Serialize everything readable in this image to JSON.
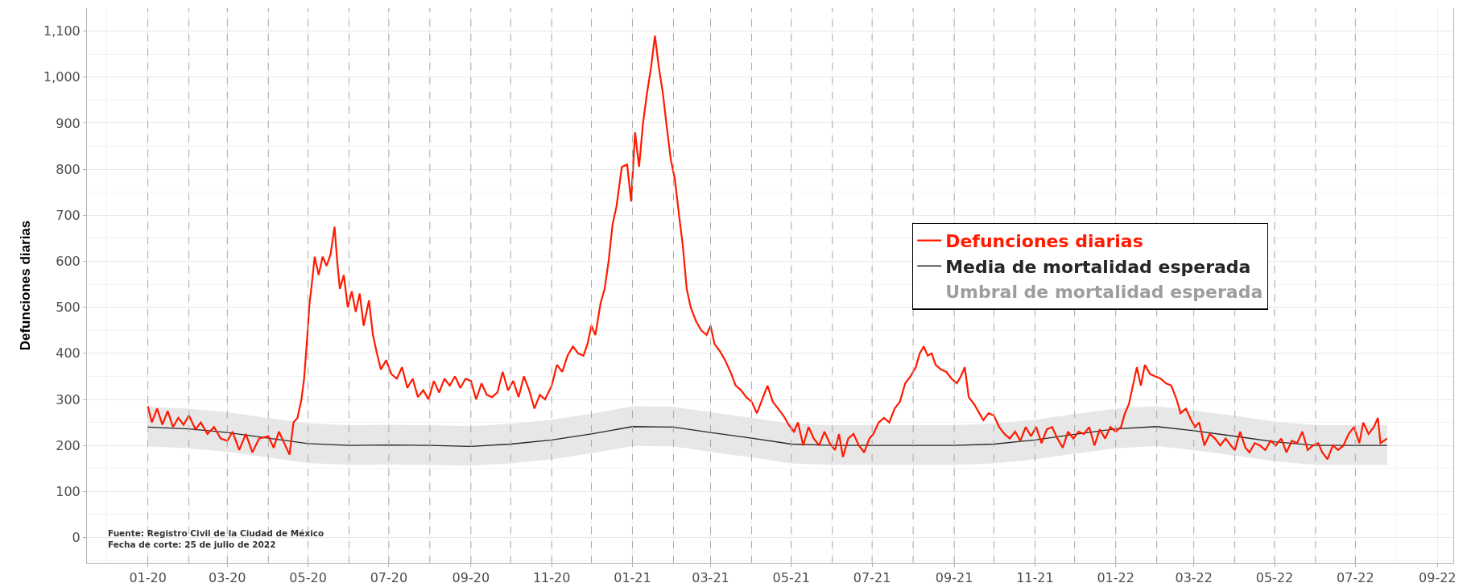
{
  "chart_data": {
    "type": "line",
    "ylabel": "Defunciones diarias",
    "annotations": [
      "Umbral de mortalidad esperada",
      "Fuente: Registro Civil de la Ciudad de México",
      "Fecha de corte: 25 de julio de 2022"
    ],
    "xlim": [
      "2019-11-16",
      "2022-09-13"
    ],
    "ylim": [
      -55,
      1150
    ],
    "xticks": [
      {
        "value": "2020-01-01",
        "label": "01-20"
      },
      {
        "value": "2020-03-01",
        "label": "03-20"
      },
      {
        "value": "2020-05-01",
        "label": "05-20"
      },
      {
        "value": "2020-07-01",
        "label": "07-20"
      },
      {
        "value": "2020-09-01",
        "label": "09-20"
      },
      {
        "value": "2020-11-01",
        "label": "11-20"
      },
      {
        "value": "2021-01-01",
        "label": "01-21"
      },
      {
        "value": "2021-03-01",
        "label": "03-21"
      },
      {
        "value": "2021-05-01",
        "label": "05-21"
      },
      {
        "value": "2021-07-01",
        "label": "07-21"
      },
      {
        "value": "2021-09-01",
        "label": "09-21"
      },
      {
        "value": "2021-11-01",
        "label": "11-21"
      },
      {
        "value": "2022-01-01",
        "label": "01-22"
      },
      {
        "value": "2022-03-01",
        "label": "03-22"
      },
      {
        "value": "2022-05-01",
        "label": "05-22"
      },
      {
        "value": "2022-07-01",
        "label": "07-22"
      },
      {
        "value": "2022-09-01",
        "label": "09-22"
      }
    ],
    "yticks": [
      0,
      100,
      200,
      300,
      400,
      500,
      600,
      700,
      800,
      900,
      {
        "value": 1000,
        "label": "1,000"
      },
      {
        "value": 1100,
        "label": "1,100"
      }
    ],
    "grid": true,
    "legend": "right",
    "series": [
      {
        "name": "Defunciones diarias",
        "type": "line",
        "color": "#ff1a00",
        "x": [
          "2020-01-01",
          "2020-01-04",
          "2020-01-08",
          "2020-01-12",
          "2020-01-16",
          "2020-01-20",
          "2020-01-24",
          "2020-01-28",
          "2020-02-01",
          "2020-02-06",
          "2020-02-10",
          "2020-02-15",
          "2020-02-20",
          "2020-02-25",
          "2020-03-01",
          "2020-03-05",
          "2020-03-10",
          "2020-03-15",
          "2020-03-20",
          "2020-03-25",
          "2020-04-01",
          "2020-04-05",
          "2020-04-09",
          "2020-04-13",
          "2020-04-17",
          "2020-04-20",
          "2020-04-23",
          "2020-04-26",
          "2020-04-28",
          "2020-04-30",
          "2020-05-02",
          "2020-05-04",
          "2020-05-06",
          "2020-05-09",
          "2020-05-12",
          "2020-05-15",
          "2020-05-18",
          "2020-05-21",
          "2020-05-23",
          "2020-05-25",
          "2020-05-28",
          "2020-05-31",
          "2020-06-03",
          "2020-06-06",
          "2020-06-09",
          "2020-06-12",
          "2020-06-16",
          "2020-06-19",
          "2020-06-22",
          "2020-06-25",
          "2020-06-29",
          "2020-07-03",
          "2020-07-07",
          "2020-07-11",
          "2020-07-15",
          "2020-07-19",
          "2020-07-23",
          "2020-07-27",
          "2020-07-31",
          "2020-08-04",
          "2020-08-08",
          "2020-08-12",
          "2020-08-16",
          "2020-08-20",
          "2020-08-24",
          "2020-08-28",
          "2020-09-01",
          "2020-09-05",
          "2020-09-09",
          "2020-09-13",
          "2020-09-17",
          "2020-09-21",
          "2020-09-25",
          "2020-09-29",
          "2020-10-03",
          "2020-10-07",
          "2020-10-11",
          "2020-10-15",
          "2020-10-19",
          "2020-10-23",
          "2020-10-27",
          "2020-11-01",
          "2020-11-05",
          "2020-11-09",
          "2020-11-13",
          "2020-11-17",
          "2020-11-21",
          "2020-11-25",
          "2020-11-28",
          "2020-12-01",
          "2020-12-04",
          "2020-12-08",
          "2020-12-11",
          "2020-12-14",
          "2020-12-17",
          "2020-12-20",
          "2020-12-24",
          "2020-12-28",
          "2020-12-31",
          "2021-01-03",
          "2021-01-06",
          "2021-01-09",
          "2021-01-12",
          "2021-01-15",
          "2021-01-18",
          "2021-01-21",
          "2021-01-24",
          "2021-01-27",
          "2021-01-30",
          "2021-02-02",
          "2021-02-05",
          "2021-02-08",
          "2021-02-11",
          "2021-02-14",
          "2021-02-18",
          "2021-02-22",
          "2021-02-26",
          "2021-03-01",
          "2021-03-04",
          "2021-03-08",
          "2021-03-12",
          "2021-03-16",
          "2021-03-20",
          "2021-03-24",
          "2021-03-28",
          "2021-04-01",
          "2021-04-05",
          "2021-04-09",
          "2021-04-13",
          "2021-04-17",
          "2021-04-21",
          "2021-04-25",
          "2021-04-29",
          "2021-05-03",
          "2021-05-06",
          "2021-05-10",
          "2021-05-14",
          "2021-05-18",
          "2021-05-22",
          "2021-05-26",
          "2021-05-30",
          "2021-06-03",
          "2021-06-06",
          "2021-06-09",
          "2021-06-13",
          "2021-06-17",
          "2021-06-21",
          "2021-06-25",
          "2021-06-29",
          "2021-07-02",
          "2021-07-06",
          "2021-07-10",
          "2021-07-14",
          "2021-07-18",
          "2021-07-22",
          "2021-07-26",
          "2021-07-30",
          "2021-08-03",
          "2021-08-06",
          "2021-08-09",
          "2021-08-12",
          "2021-08-15",
          "2021-08-18",
          "2021-08-22",
          "2021-08-26",
          "2021-08-30",
          "2021-09-03",
          "2021-09-06",
          "2021-09-09",
          "2021-09-12",
          "2021-09-16",
          "2021-09-20",
          "2021-09-23",
          "2021-09-27",
          "2021-10-01",
          "2021-10-05",
          "2021-10-09",
          "2021-10-13",
          "2021-10-17",
          "2021-10-21",
          "2021-10-25",
          "2021-10-29",
          "2021-11-02",
          "2021-11-06",
          "2021-11-10",
          "2021-11-14",
          "2021-11-18",
          "2021-11-22",
          "2021-11-26",
          "2021-11-30",
          "2021-12-04",
          "2021-12-08",
          "2021-12-12",
          "2021-12-16",
          "2021-12-20",
          "2021-12-24",
          "2021-12-28",
          "2022-01-01",
          "2022-01-05",
          "2022-01-08",
          "2022-01-11",
          "2022-01-14",
          "2022-01-17",
          "2022-01-20",
          "2022-01-23",
          "2022-01-27",
          "2022-01-31",
          "2022-02-04",
          "2022-02-08",
          "2022-02-12",
          "2022-02-16",
          "2022-02-19",
          "2022-02-23",
          "2022-02-27",
          "2022-03-02",
          "2022-03-05",
          "2022-03-09",
          "2022-03-13",
          "2022-03-17",
          "2022-03-21",
          "2022-03-25",
          "2022-03-29",
          "2022-04-01",
          "2022-04-05",
          "2022-04-09",
          "2022-04-12",
          "2022-04-16",
          "2022-04-20",
          "2022-04-24",
          "2022-04-28",
          "2022-05-02",
          "2022-05-06",
          "2022-05-10",
          "2022-05-14",
          "2022-05-18",
          "2022-05-22",
          "2022-05-26",
          "2022-05-30",
          "2022-06-03",
          "2022-06-06",
          "2022-06-10",
          "2022-06-14",
          "2022-06-18",
          "2022-06-22",
          "2022-06-26",
          "2022-06-30",
          "2022-07-04",
          "2022-07-07",
          "2022-07-11",
          "2022-07-15",
          "2022-07-18",
          "2022-07-20",
          "2022-07-25"
        ],
        "values": [
          285,
          250,
          280,
          245,
          275,
          240,
          260,
          245,
          265,
          235,
          250,
          225,
          240,
          215,
          210,
          230,
          190,
          225,
          185,
          215,
          220,
          195,
          230,
          205,
          180,
          250,
          260,
          300,
          345,
          420,
          505,
          555,
          610,
          570,
          610,
          590,
          615,
          675,
          600,
          540,
          570,
          500,
          535,
          490,
          530,
          460,
          515,
          440,
          400,
          365,
          385,
          355,
          345,
          370,
          325,
          345,
          305,
          320,
          300,
          340,
          315,
          345,
          330,
          350,
          325,
          345,
          340,
          300,
          335,
          310,
          305,
          315,
          360,
          320,
          340,
          305,
          350,
          320,
          280,
          310,
          300,
          330,
          375,
          360,
          395,
          415,
          400,
          395,
          420,
          460,
          440,
          510,
          540,
          600,
          680,
          720,
          805,
          810,
          730,
          880,
          805,
          900,
          965,
          1020,
          1090,
          1020,
          965,
          890,
          820,
          780,
          705,
          635,
          540,
          500,
          470,
          450,
          440,
          460,
          420,
          405,
          385,
          360,
          330,
          320,
          305,
          295,
          270,
          300,
          330,
          295,
          280,
          265,
          245,
          230,
          250,
          200,
          240,
          215,
          200,
          230,
          205,
          190,
          225,
          175,
          215,
          225,
          200,
          185,
          215,
          225,
          250,
          260,
          250,
          280,
          295,
          335,
          350,
          370,
          400,
          415,
          395,
          400,
          375,
          365,
          360,
          345,
          335,
          350,
          370,
          305,
          290,
          270,
          255,
          270,
          265,
          240,
          225,
          215,
          230,
          210,
          240,
          220,
          240,
          205,
          235,
          240,
          215,
          195,
          230,
          215,
          230,
          225,
          240,
          200,
          235,
          215,
          240,
          230,
          240,
          270,
          290,
          330,
          370,
          330,
          375,
          355,
          350,
          345,
          335,
          330,
          300,
          270,
          280,
          255,
          240,
          250,
          200,
          225,
          215,
          200,
          215,
          200,
          190,
          230,
          195,
          185,
          205,
          200,
          190,
          210,
          200,
          215,
          185,
          210,
          205,
          230,
          190,
          200,
          205,
          185,
          170,
          200,
          190,
          200,
          225,
          240,
          205,
          250,
          225,
          240,
          260,
          205,
          215
        ]
      },
      {
        "name": "Media de mortalidad esperada",
        "type": "line",
        "color": "#262626",
        "x": [
          "2020-01-01",
          "2020-02-01",
          "2020-03-01",
          "2020-04-01",
          "2020-05-01",
          "2020-06-01",
          "2020-07-01",
          "2020-08-01",
          "2020-09-01",
          "2020-10-01",
          "2020-11-01",
          "2020-12-01",
          "2021-01-01",
          "2021-02-01",
          "2021-03-01",
          "2021-04-01",
          "2021-05-01",
          "2021-06-01",
          "2021-07-01",
          "2021-08-01",
          "2021-09-01",
          "2021-10-01",
          "2021-11-01",
          "2021-12-01",
          "2022-01-01",
          "2022-02-01",
          "2022-03-01",
          "2022-04-01",
          "2022-05-01",
          "2022-06-01",
          "2022-07-01",
          "2022-07-25"
        ],
        "values": [
          240,
          236,
          228,
          216,
          204,
          200,
          201,
          200,
          198,
          203,
          212,
          225,
          241,
          240,
          228,
          216,
          203,
          200,
          200,
          200,
          200,
          203,
          212,
          224,
          236,
          241,
          232,
          220,
          208,
          200,
          200,
          200
        ],
        "upper": [
          284,
          280,
          272,
          260,
          248,
          244,
          245,
          244,
          242,
          247,
          256,
          269,
          285,
          284,
          272,
          260,
          247,
          244,
          244,
          244,
          244,
          247,
          256,
          268,
          280,
          285,
          276,
          264,
          252,
          244,
          244,
          244
        ],
        "lower": [
          198,
          194,
          186,
          174,
          162,
          158,
          159,
          158,
          156,
          161,
          170,
          183,
          199,
          198,
          186,
          174,
          161,
          158,
          158,
          158,
          158,
          161,
          170,
          182,
          194,
          199,
          190,
          178,
          166,
          158,
          158,
          158
        ]
      }
    ],
    "ref_lines": [
      {
        "axis": "x",
        "value": "2020-01-01",
        "color": "#a8a8a8",
        "line_style": "dashed"
      },
      {
        "axis": "x",
        "value": "2020-02-01",
        "color": "#a8a8a8",
        "line_style": "dashed"
      },
      {
        "axis": "x",
        "value": "2020-03-01",
        "color": "#a8a8a8",
        "line_style": "dashed"
      },
      {
        "axis": "x",
        "value": "2020-04-01",
        "color": "#a8a8a8",
        "line_style": "dashed"
      },
      {
        "axis": "x",
        "value": "2020-05-01",
        "color": "#a8a8a8",
        "line_style": "dashed"
      },
      {
        "axis": "x",
        "value": "2020-06-01",
        "color": "#a8a8a8",
        "line_style": "dashed"
      },
      {
        "axis": "x",
        "value": "2020-07-01",
        "color": "#a8a8a8",
        "line_style": "dashed"
      },
      {
        "axis": "x",
        "value": "2020-08-01",
        "color": "#a8a8a8",
        "line_style": "dashed"
      },
      {
        "axis": "x",
        "value": "2020-09-01",
        "color": "#a8a8a8",
        "line_style": "dashed"
      },
      {
        "axis": "x",
        "value": "2020-10-01",
        "color": "#a8a8a8",
        "line_style": "dashed"
      },
      {
        "axis": "x",
        "value": "2020-11-01",
        "color": "#a8a8a8",
        "line_style": "dashed"
      },
      {
        "axis": "x",
        "value": "2020-12-01",
        "color": "#a8a8a8",
        "line_style": "dashed"
      },
      {
        "axis": "x",
        "value": "2021-01-01",
        "color": "#a8a8a8",
        "line_style": "dashed"
      },
      {
        "axis": "x",
        "value": "2021-02-01",
        "color": "#a8a8a8",
        "line_style": "dashed"
      },
      {
        "axis": "x",
        "value": "2021-03-01",
        "color": "#a8a8a8",
        "line_style": "dashed"
      },
      {
        "axis": "x",
        "value": "2021-04-01",
        "color": "#a8a8a8",
        "line_style": "dashed"
      },
      {
        "axis": "x",
        "value": "2021-05-01",
        "color": "#a8a8a8",
        "line_style": "dashed"
      },
      {
        "axis": "x",
        "value": "2021-06-01",
        "color": "#a8a8a8",
        "line_style": "dashed"
      },
      {
        "axis": "x",
        "value": "2021-07-01",
        "color": "#a8a8a8",
        "line_style": "dashed"
      },
      {
        "axis": "x",
        "value": "2021-08-01",
        "color": "#a8a8a8",
        "line_style": "dashed"
      },
      {
        "axis": "x",
        "value": "2021-09-01",
        "color": "#a8a8a8",
        "line_style": "dashed"
      },
      {
        "axis": "x",
        "value": "2021-10-01",
        "color": "#a8a8a8",
        "line_style": "dashed"
      },
      {
        "axis": "x",
        "value": "2021-11-01",
        "color": "#a8a8a8",
        "line_style": "dashed"
      },
      {
        "axis": "x",
        "value": "2021-12-01",
        "color": "#a8a8a8",
        "line_style": "dashed"
      },
      {
        "axis": "x",
        "value": "2022-01-01",
        "color": "#a8a8a8",
        "line_style": "dashed"
      },
      {
        "axis": "x",
        "value": "2022-02-01",
        "color": "#a8a8a8",
        "line_style": "dashed"
      },
      {
        "axis": "x",
        "value": "2022-03-01",
        "color": "#a8a8a8",
        "line_style": "dashed"
      },
      {
        "axis": "x",
        "value": "2022-04-01",
        "color": "#a8a8a8",
        "line_style": "dashed"
      },
      {
        "axis": "x",
        "value": "2022-05-01",
        "color": "#a8a8a8",
        "line_style": "dashed"
      },
      {
        "axis": "x",
        "value": "2022-06-01",
        "color": "#a8a8a8",
        "line_style": "dashed"
      },
      {
        "axis": "x",
        "value": "2022-07-01",
        "color": "#a8a8a8",
        "line_style": "dashed"
      }
    ]
  }
}
